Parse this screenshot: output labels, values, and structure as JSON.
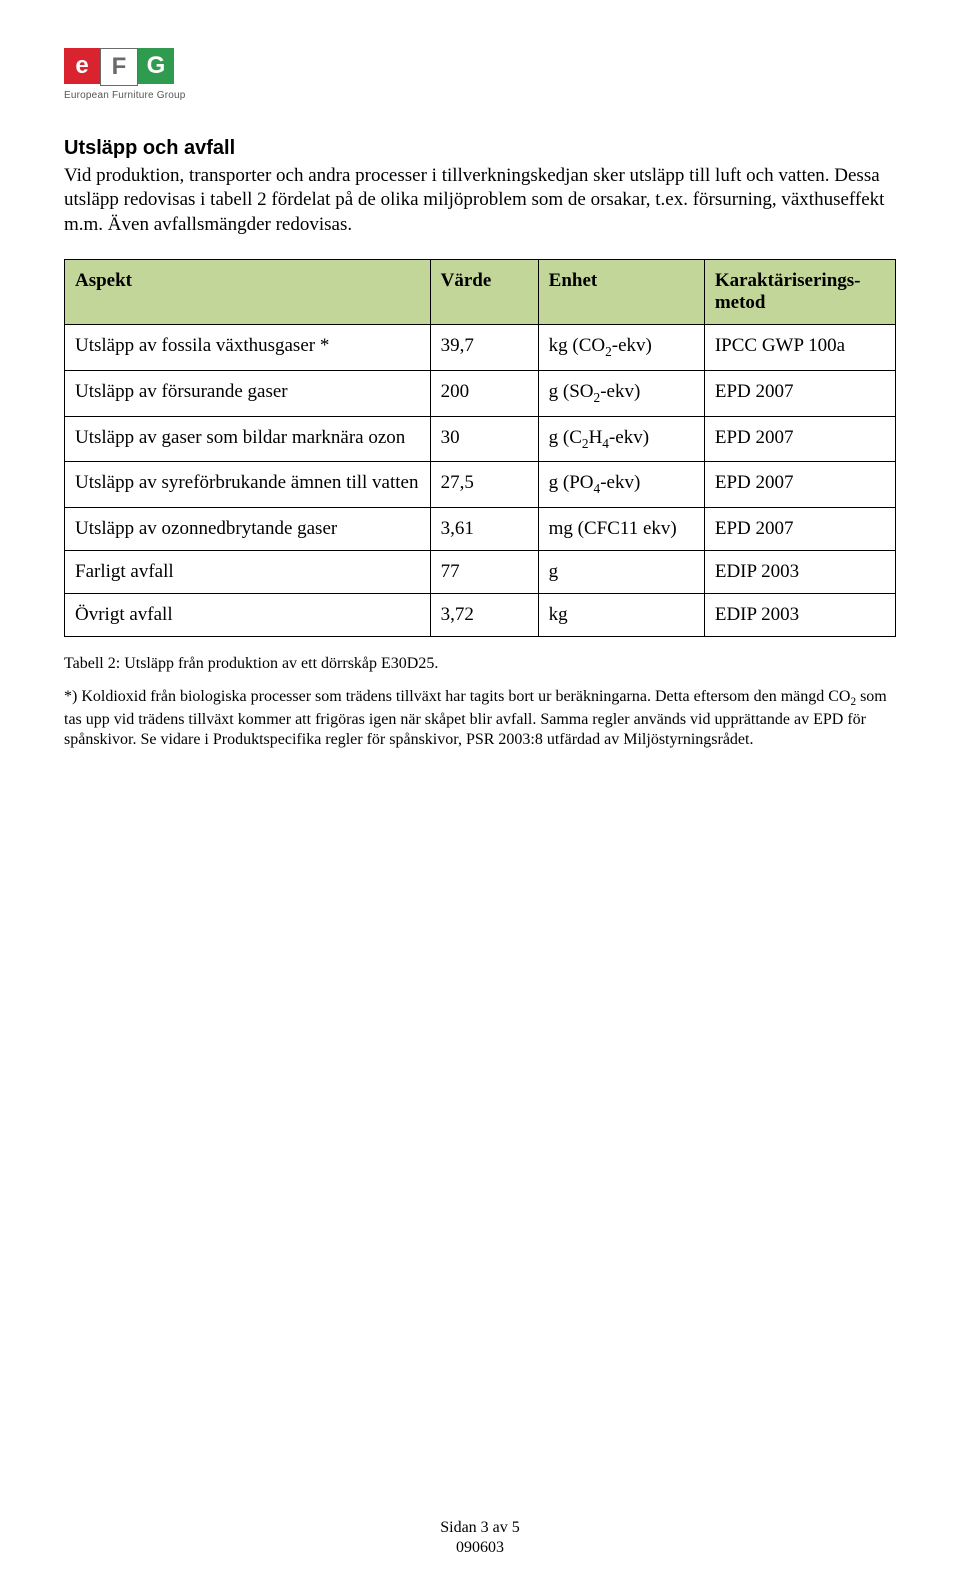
{
  "logo": {
    "letters": [
      "e",
      "F",
      "G"
    ],
    "box_colors": [
      "#d9232e",
      "#ffffff",
      "#2e9b4f"
    ],
    "letter_colors": [
      "#ffffff",
      "#6a6a6a",
      "#ffffff"
    ],
    "border_color": "#6a6a6a",
    "subline": "European Furniture Group"
  },
  "section": {
    "heading": "Utsläpp och avfall",
    "intro": "Vid produktion, transporter och andra processer i tillverkningskedjan sker utsläpp till luft och vatten. Dessa utsläpp redovisas i tabell 2 fördelat på de olika miljöproblem som de orsakar, t.ex. försurning, växthuseffekt m.m. Även avfallsmängder redovisas."
  },
  "table": {
    "header_bg": "#c2d69a",
    "border_color": "#000000",
    "columns": [
      "Aspekt",
      "Värde",
      "Enhet",
      "Karaktäriserings-\nmetod"
    ],
    "rows": [
      {
        "aspekt": "Utsläpp av fossila växthusgaser *",
        "varde": "39,7",
        "enhet_html": "kg (CO<sub>2</sub>-ekv)",
        "metod": "IPCC GWP 100a"
      },
      {
        "aspekt": "Utsläpp av försurande gaser",
        "varde": "200",
        "enhet_html": "g (SO<sub>2</sub>-ekv)",
        "metod": "EPD 2007"
      },
      {
        "aspekt": "Utsläpp av gaser som bildar marknära ozon",
        "varde": "30",
        "enhet_html": "g (C<sub>2</sub>H<sub>4</sub>-ekv)",
        "metod": "EPD 2007"
      },
      {
        "aspekt": "Utsläpp av syreförbrukande ämnen till vatten",
        "varde": "27,5",
        "enhet_html": "g (PO<sub>4</sub>-ekv)",
        "metod": "EPD 2007"
      },
      {
        "aspekt": "Utsläpp av ozonnedbrytande gaser",
        "varde": "3,61",
        "enhet_html": "mg (CFC11 ekv)",
        "metod": "EPD 2007"
      },
      {
        "aspekt": "Farligt avfall",
        "varde": "77",
        "enhet_html": "g",
        "metod": "EDIP 2003"
      },
      {
        "aspekt": "Övrigt avfall",
        "varde": "3,72",
        "enhet_html": "kg",
        "metod": "EDIP 2003"
      }
    ]
  },
  "caption": "Tabell 2: Utsläpp från produktion av ett dörrskåp E30D25.",
  "footnote_html": "*) Koldioxid från biologiska processer som trädens tillväxt har tagits bort ur beräkningarna. Detta eftersom den mängd CO<sub>2</sub> som tas upp vid trädens tillväxt kommer att frigöras igen när skåpet blir avfall. Samma regler används vid upprättande av EPD för spånskivor. Se vidare i Produktspecifika regler för spånskivor, PSR 2003:8 utfärdad av Miljöstyrningsrådet.",
  "footer": {
    "line1": "Sidan 3 av 5",
    "line2": "090603"
  }
}
